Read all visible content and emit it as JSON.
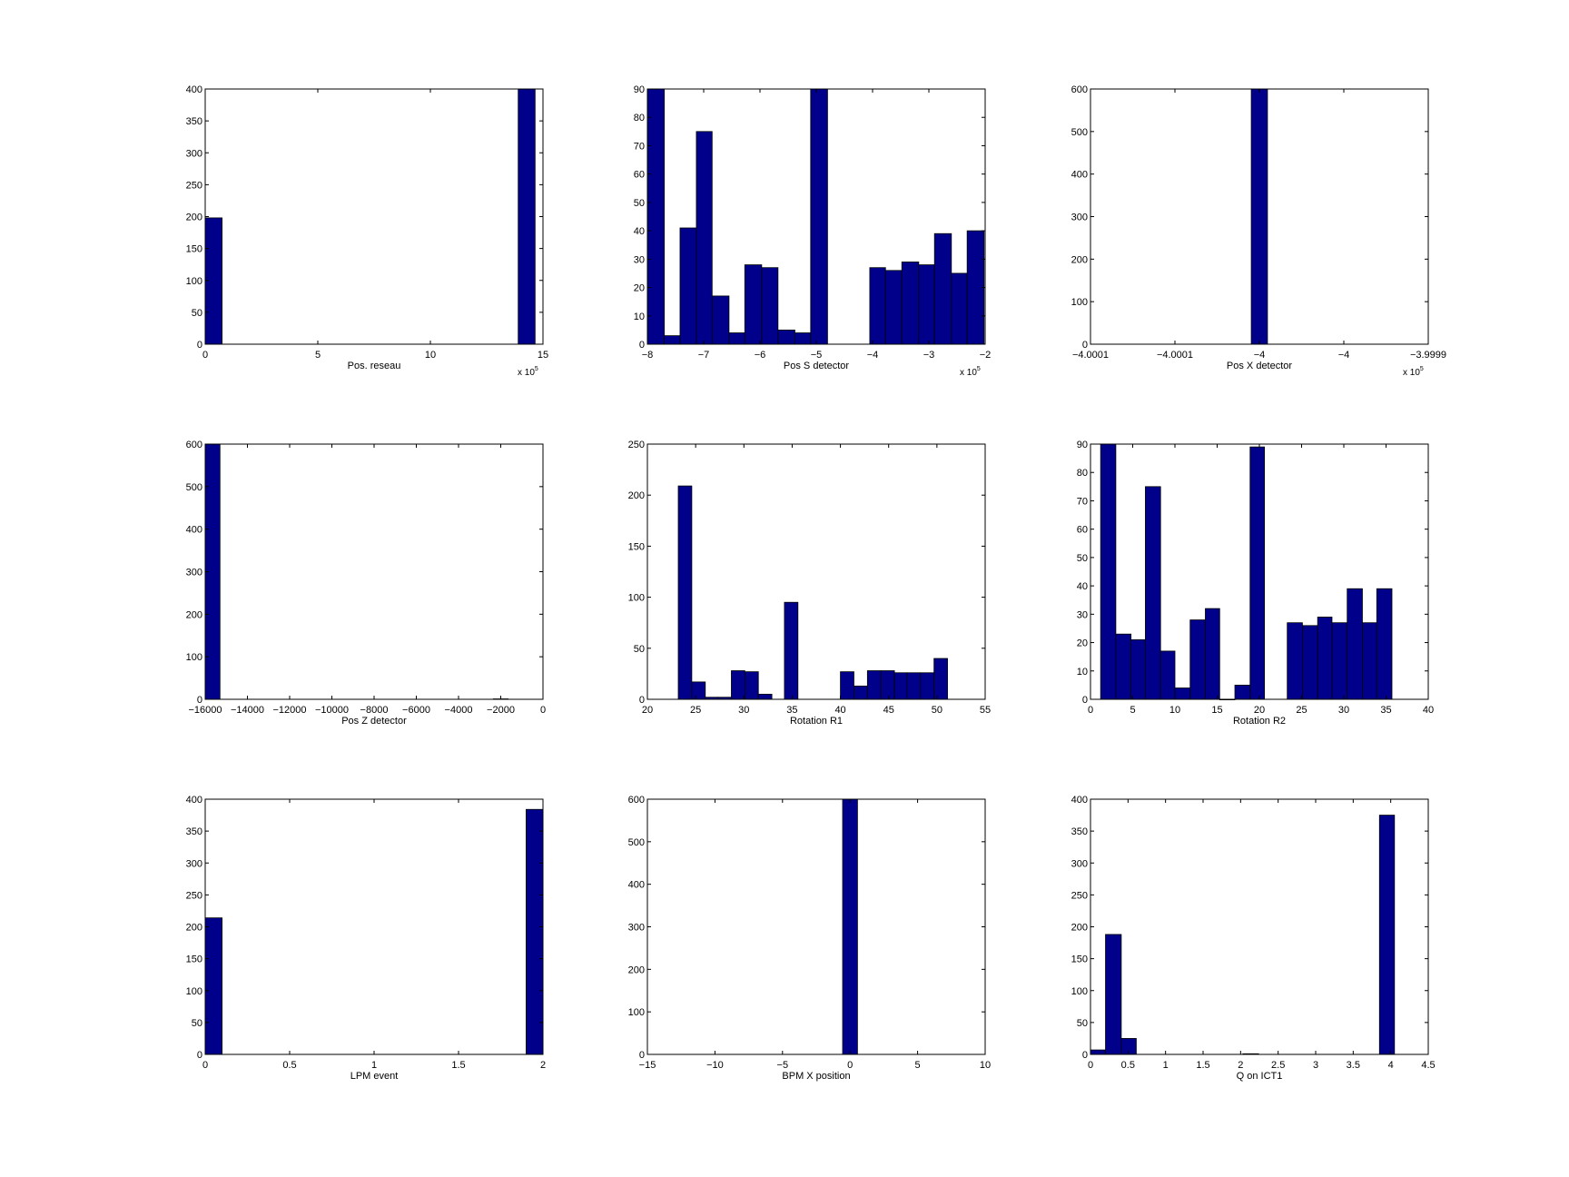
{
  "bar_color": "#00008B",
  "chart_data": [
    {
      "type": "bar",
      "xlabel": "Pos. reseau",
      "xlim": [
        0,
        15
      ],
      "ylim": [
        0,
        400
      ],
      "xticks": [
        0,
        5,
        10,
        15
      ],
      "yticks": [
        0,
        50,
        100,
        150,
        200,
        250,
        300,
        350,
        400
      ],
      "x_multiplier": "x 10^5",
      "bins": [
        [
          0,
          0.75,
          198
        ],
        [
          13.9,
          14.65,
          400
        ]
      ]
    },
    {
      "type": "bar",
      "xlabel": "Pos S detector",
      "xlim": [
        -8,
        -2
      ],
      "ylim": [
        0,
        90
      ],
      "xticks": [
        -8,
        -7,
        -6,
        -5,
        -4,
        -3,
        -2
      ],
      "yticks": [
        0,
        10,
        20,
        30,
        40,
        50,
        60,
        70,
        80,
        90
      ],
      "x_multiplier": "x 10^5",
      "bins": [
        [
          -8,
          -7.7,
          90
        ],
        [
          -7.7,
          -7.42,
          3
        ],
        [
          -7.42,
          -7.13,
          41
        ],
        [
          -7.13,
          -6.85,
          75
        ],
        [
          -6.85,
          -6.55,
          17
        ],
        [
          -6.55,
          -6.27,
          4
        ],
        [
          -6.27,
          -5.97,
          28
        ],
        [
          -5.97,
          -5.68,
          27
        ],
        [
          -5.68,
          -5.38,
          5
        ],
        [
          -5.38,
          -5.1,
          4
        ],
        [
          -5.1,
          -4.8,
          90
        ],
        [
          -4.05,
          -3.77,
          27
        ],
        [
          -3.77,
          -3.48,
          26
        ],
        [
          -3.48,
          -3.18,
          29
        ],
        [
          -3.18,
          -2.9,
          28
        ],
        [
          -2.9,
          -2.6,
          39
        ],
        [
          -2.6,
          -2.32,
          25
        ],
        [
          -2.32,
          -2.02,
          40
        ]
      ]
    },
    {
      "type": "bar",
      "xlabel": "Pos X detector",
      "xlim": [
        -4.0001,
        -3.9999
      ],
      "ylim": [
        0,
        600
      ],
      "xticks": [
        -4.0001,
        -4.00005,
        -4,
        -3.99995,
        -3.9999
      ],
      "xtick_labels": [
        "−4.0001",
        "−4.0001",
        "−4",
        "−4",
        "−3.9999"
      ],
      "yticks": [
        0,
        100,
        200,
        300,
        400,
        500,
        600
      ],
      "x_multiplier": "x 10^5",
      "bins": [
        [
          -4.0000048,
          -3.9999952,
          600
        ]
      ]
    },
    {
      "type": "bar",
      "xlabel": "Pos Z detector",
      "xlim": [
        -16000,
        0
      ],
      "ylim": [
        0,
        600
      ],
      "xticks": [
        -16000,
        -14000,
        -12000,
        -10000,
        -8000,
        -6000,
        -4000,
        -2000,
        0
      ],
      "xtick_labels": [
        "−16000",
        "−14000",
        "−12000",
        "−10000",
        "−8000",
        "−6000",
        "−4000",
        "−2000",
        "0"
      ],
      "yticks": [
        0,
        100,
        200,
        300,
        400,
        500,
        600
      ],
      "bins": [
        [
          -16000,
          -15300,
          600
        ],
        [
          -2350,
          -1650,
          1
        ]
      ]
    },
    {
      "type": "bar",
      "xlabel": "Rotation R1",
      "xlim": [
        20,
        55
      ],
      "ylim": [
        0,
        250
      ],
      "xticks": [
        20,
        25,
        30,
        35,
        40,
        45,
        50,
        55
      ],
      "yticks": [
        0,
        50,
        100,
        150,
        200,
        250
      ],
      "bins": [
        [
          23.2,
          24.6,
          209
        ],
        [
          24.6,
          26,
          17
        ],
        [
          26,
          27.3,
          2
        ],
        [
          27.3,
          28.7,
          2
        ],
        [
          28.7,
          30.1,
          28
        ],
        [
          30.1,
          31.5,
          27
        ],
        [
          31.5,
          32.9,
          5
        ],
        [
          34.2,
          35.6,
          95
        ],
        [
          40,
          41.4,
          27
        ],
        [
          41.4,
          42.8,
          13
        ],
        [
          42.8,
          44.2,
          28
        ],
        [
          44.2,
          45.6,
          28
        ],
        [
          45.6,
          46.9,
          26
        ],
        [
          46.9,
          48.3,
          26
        ],
        [
          48.3,
          49.7,
          26
        ],
        [
          49.7,
          51.1,
          40
        ]
      ]
    },
    {
      "type": "bar",
      "xlabel": "Rotation R2",
      "xlim": [
        0,
        40
      ],
      "ylim": [
        0,
        90
      ],
      "xticks": [
        0,
        5,
        10,
        15,
        20,
        25,
        30,
        35,
        40
      ],
      "yticks": [
        0,
        10,
        20,
        30,
        40,
        50,
        60,
        70,
        80,
        90
      ],
      "bins": [
        [
          1.2,
          3,
          90
        ],
        [
          3,
          4.8,
          23
        ],
        [
          4.8,
          6.5,
          21
        ],
        [
          6.5,
          8.3,
          75
        ],
        [
          8.3,
          10,
          17
        ],
        [
          10,
          11.8,
          4
        ],
        [
          11.8,
          13.6,
          28
        ],
        [
          13.6,
          15.3,
          32
        ],
        [
          15.3,
          17.1,
          0
        ],
        [
          17.1,
          18.9,
          5
        ],
        [
          18.9,
          20.6,
          89
        ],
        [
          23.3,
          25.1,
          27
        ],
        [
          25.1,
          26.9,
          26
        ],
        [
          26.9,
          28.6,
          29
        ],
        [
          28.6,
          30.4,
          27
        ],
        [
          30.4,
          32.2,
          39
        ],
        [
          32.2,
          33.9,
          27
        ],
        [
          33.9,
          35.7,
          39
        ]
      ]
    },
    {
      "type": "bar",
      "xlabel": "LPM event",
      "xlim": [
        0,
        2
      ],
      "ylim": [
        0,
        400
      ],
      "xticks": [
        0,
        0.5,
        1,
        1.5,
        2
      ],
      "yticks": [
        0,
        50,
        100,
        150,
        200,
        250,
        300,
        350,
        400
      ],
      "bins": [
        [
          0,
          0.1,
          214
        ],
        [
          1.9,
          2,
          384
        ]
      ]
    },
    {
      "type": "bar",
      "xlabel": "BPM X position",
      "xlim": [
        -15,
        10
      ],
      "ylim": [
        0,
        600
      ],
      "xticks": [
        -15,
        -10,
        -5,
        0,
        5,
        10
      ],
      "xtick_labels": [
        "−15",
        "−10",
        "−5",
        "0",
        "5",
        "10"
      ],
      "yticks": [
        0,
        100,
        200,
        300,
        400,
        500,
        600
      ],
      "bins": [
        [
          -0.55,
          0.55,
          600
        ]
      ]
    },
    {
      "type": "bar",
      "xlabel": "Q on ICT1",
      "xlim": [
        0,
        4.5
      ],
      "ylim": [
        0,
        400
      ],
      "xticks": [
        0,
        0.5,
        1,
        1.5,
        2,
        2.5,
        3,
        3.5,
        4,
        4.5
      ],
      "yticks": [
        0,
        50,
        100,
        150,
        200,
        250,
        300,
        350,
        400
      ],
      "bins": [
        [
          0,
          0.2,
          7
        ],
        [
          0.2,
          0.41,
          188
        ],
        [
          0.41,
          0.61,
          25
        ],
        [
          2.03,
          2.24,
          1
        ],
        [
          3.85,
          4.05,
          375
        ]
      ]
    }
  ]
}
